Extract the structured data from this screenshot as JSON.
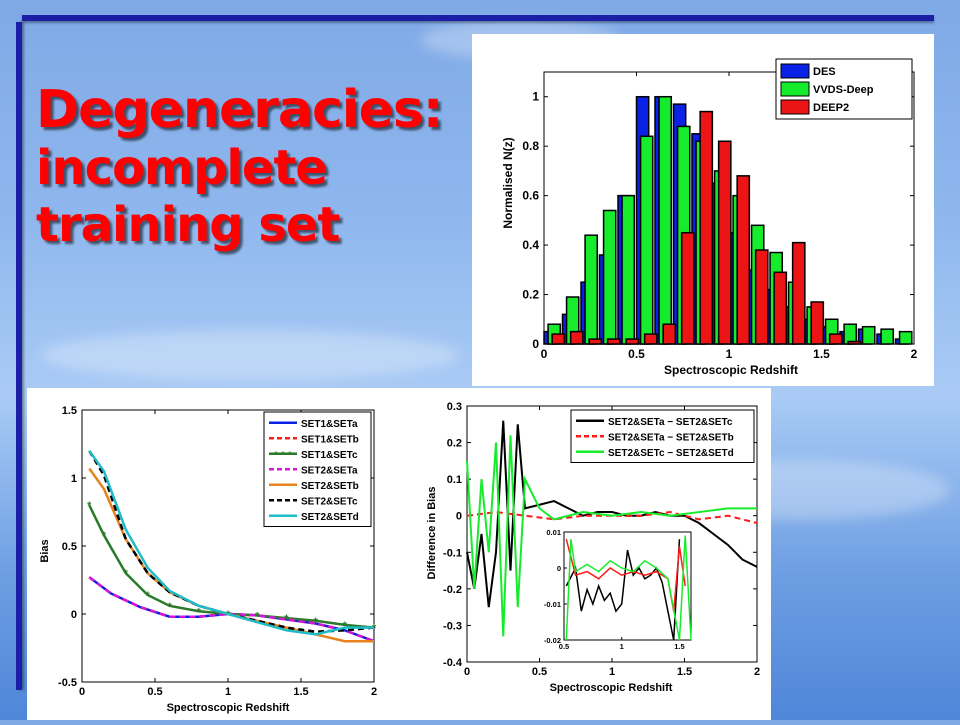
{
  "slide": {
    "title_lines": [
      "Degeneracies:",
      "incomplete",
      "training set"
    ]
  },
  "colors": {
    "title": "#ff0000",
    "rule": "#1b1fa8",
    "des": "#0a22e6",
    "vvds": "#16ec2b",
    "deep2": "#ec1414"
  },
  "chart_data": [
    {
      "type": "bar",
      "xlabel": "Spectroscopic Redshift",
      "ylabel": "Normalised N(z)",
      "xlim": [
        0,
        2
      ],
      "ylim": [
        0,
        1.1
      ],
      "xticks": [
        0,
        0.5,
        1,
        1.5,
        2
      ],
      "xtick_labels": [
        "0",
        "0.5",
        "1",
        "1.5",
        "2"
      ],
      "yticks": [
        0,
        0.2,
        0.4,
        0.6,
        0.8,
        1
      ],
      "ytick_labels": [
        "0",
        "0.2",
        "0.4",
        "0.6",
        "0.8",
        "1"
      ],
      "legend_position": "top-right",
      "bin_width": 0.1,
      "series": [
        {
          "name": "DES",
          "color": "#0a22e6",
          "x": [
            0.05,
            0.15,
            0.25,
            0.35,
            0.45,
            0.55,
            0.65,
            0.75,
            0.85,
            0.95,
            1.05,
            1.15,
            1.25,
            1.35,
            1.45,
            1.55,
            1.65,
            1.75,
            1.85,
            1.95
          ],
          "values": [
            0.05,
            0.12,
            0.25,
            0.36,
            0.6,
            1.0,
            1.0,
            0.97,
            0.85,
            0.65,
            0.45,
            0.3,
            0.22,
            0.15,
            0.1,
            0.07,
            0.05,
            0.06,
            0.04,
            0.02
          ]
        },
        {
          "name": "VVDS-Deep",
          "color": "#16ec2b",
          "x": [
            0.05,
            0.15,
            0.25,
            0.35,
            0.45,
            0.55,
            0.65,
            0.75,
            0.85,
            0.95,
            1.05,
            1.15,
            1.25,
            1.35,
            1.45,
            1.55,
            1.65,
            1.75,
            1.85,
            1.95
          ],
          "values": [
            0.08,
            0.19,
            0.44,
            0.54,
            0.6,
            0.84,
            1.0,
            0.88,
            0.82,
            0.7,
            0.6,
            0.48,
            0.37,
            0.25,
            0.15,
            0.1,
            0.08,
            0.07,
            0.06,
            0.05
          ]
        },
        {
          "name": "DEEP2",
          "color": "#ec1414",
          "x": [
            0.05,
            0.15,
            0.25,
            0.35,
            0.45,
            0.55,
            0.65,
            0.75,
            0.85,
            0.95,
            1.05,
            1.15,
            1.25,
            1.35,
            1.45,
            1.55,
            1.65,
            1.75,
            1.85,
            1.95
          ],
          "values": [
            0.04,
            0.05,
            0.02,
            0.02,
            0.02,
            0.04,
            0.08,
            0.45,
            0.94,
            0.82,
            0.68,
            0.38,
            0.29,
            0.41,
            0.17,
            0.04,
            0.01,
            0.0,
            0.0,
            0.0
          ]
        }
      ]
    },
    {
      "type": "line",
      "xlabel": "Spectroscopic Redshift",
      "ylabel": "Bias",
      "xlim": [
        0,
        2
      ],
      "ylim": [
        -0.5,
        1.5
      ],
      "xticks": [
        0,
        0.5,
        1,
        1.5,
        2
      ],
      "xtick_labels": [
        "0",
        "0.5",
        "1",
        "1.5",
        "2"
      ],
      "yticks": [
        -0.5,
        0,
        0.5,
        1,
        1.5
      ],
      "ytick_labels": [
        "-0.5",
        "0",
        "0.5",
        "1",
        "1.5"
      ],
      "legend_position": "top-right",
      "series": [
        {
          "name": "SET1&SETa",
          "color": "#0a22e6",
          "dash": "solid",
          "x": [
            0.05,
            0.2,
            0.4,
            0.6,
            0.8,
            1.0,
            1.2,
            1.4,
            1.6,
            1.8,
            2.0
          ],
          "values": [
            0.27,
            0.15,
            0.05,
            -0.02,
            -0.02,
            0.0,
            -0.01,
            -0.04,
            -0.07,
            -0.12,
            -0.2
          ]
        },
        {
          "name": "SET1&SETb",
          "color": "#ff1a1a",
          "dash": "dashed",
          "x": [
            0.05,
            0.2,
            0.4,
            0.6,
            0.8,
            1.0,
            1.2,
            1.4,
            1.6,
            1.8,
            2.0
          ],
          "values": [
            0.27,
            0.15,
            0.05,
            -0.02,
            -0.02,
            0.0,
            -0.01,
            -0.04,
            -0.07,
            -0.12,
            -0.2
          ]
        },
        {
          "name": "SET1&SETc",
          "color": "#2a7a2a",
          "dash": "marker",
          "x": [
            0.05,
            0.15,
            0.3,
            0.45,
            0.6,
            0.8,
            1.0,
            1.2,
            1.4,
            1.6,
            1.8,
            2.0
          ],
          "values": [
            0.8,
            0.58,
            0.3,
            0.14,
            0.06,
            0.02,
            0.0,
            -0.01,
            -0.03,
            -0.05,
            -0.08,
            -0.1
          ]
        },
        {
          "name": "SET2&SETa",
          "color": "#d516d5",
          "dash": "dashed",
          "x": [
            0.05,
            0.2,
            0.4,
            0.6,
            0.8,
            1.0,
            1.2,
            1.4,
            1.6,
            1.8,
            2.0
          ],
          "values": [
            0.27,
            0.15,
            0.05,
            -0.02,
            -0.02,
            0.0,
            -0.01,
            -0.04,
            -0.07,
            -0.12,
            -0.2
          ]
        },
        {
          "name": "SET2&SETb",
          "color": "#e8821e",
          "dash": "solid",
          "x": [
            0.05,
            0.15,
            0.3,
            0.45,
            0.6,
            0.8,
            1.0,
            1.2,
            1.4,
            1.6,
            1.8,
            2.0
          ],
          "values": [
            1.07,
            0.92,
            0.55,
            0.3,
            0.16,
            0.06,
            0.0,
            -0.05,
            -0.1,
            -0.15,
            -0.2,
            -0.2
          ]
        },
        {
          "name": "SET2&SETc",
          "color": "#000000",
          "dash": "dashed",
          "x": [
            0.05,
            0.15,
            0.3,
            0.45,
            0.6,
            0.8,
            1.0,
            1.2,
            1.4,
            1.6,
            1.8,
            2.0
          ],
          "values": [
            1.2,
            1.02,
            0.55,
            0.3,
            0.16,
            0.06,
            0.0,
            -0.05,
            -0.1,
            -0.13,
            -0.12,
            -0.1
          ]
        },
        {
          "name": "SET2&SETd",
          "color": "#1fbcc9",
          "dash": "solid",
          "x": [
            0.05,
            0.15,
            0.3,
            0.45,
            0.6,
            0.8,
            1.0,
            1.2,
            1.4,
            1.6,
            1.8,
            2.0
          ],
          "values": [
            1.2,
            1.05,
            0.62,
            0.34,
            0.17,
            0.06,
            0.0,
            -0.06,
            -0.12,
            -0.15,
            -0.1,
            -0.1
          ]
        }
      ]
    },
    {
      "type": "line",
      "xlabel": "Spectroscopic Redshift",
      "ylabel": "Difference in Bias",
      "xlim": [
        0,
        2
      ],
      "ylim": [
        -0.4,
        0.3
      ],
      "xticks": [
        0,
        0.5,
        1,
        1.5,
        2
      ],
      "xtick_labels": [
        "0",
        "0.5",
        "1",
        "1.5",
        "2"
      ],
      "yticks": [
        -0.4,
        -0.3,
        -0.2,
        -0.1,
        0,
        0.1,
        0.2,
        0.3
      ],
      "ytick_labels": [
        "-0.4",
        "-0.3",
        "-0.2",
        "-0.1",
        "0",
        "0.1",
        "0.2",
        "0.3"
      ],
      "legend_position": "top-right",
      "series": [
        {
          "name": "SET2&SETa − SET2&SETc",
          "color": "#000000",
          "dash": "solid",
          "x": [
            0.0,
            0.05,
            0.1,
            0.15,
            0.2,
            0.25,
            0.3,
            0.35,
            0.4,
            0.5,
            0.6,
            0.7,
            0.8,
            0.9,
            1.0,
            1.1,
            1.2,
            1.3,
            1.4,
            1.5,
            1.6,
            1.7,
            1.8,
            1.9,
            2.0
          ],
          "values": [
            -0.1,
            -0.2,
            -0.05,
            -0.25,
            -0.1,
            0.26,
            -0.15,
            0.25,
            0.02,
            0.03,
            0.04,
            0.02,
            0.0,
            0.01,
            0.01,
            0.0,
            0.0,
            0.01,
            0.0,
            0.0,
            -0.02,
            -0.05,
            -0.08,
            -0.12,
            -0.14
          ]
        },
        {
          "name": "SET2&SETa − SET2&SETb",
          "color": "#ff1a1a",
          "dash": "dashed",
          "x": [
            0.0,
            0.2,
            0.4,
            0.6,
            0.8,
            1.0,
            1.2,
            1.4,
            1.6,
            1.8,
            2.0
          ],
          "values": [
            0.0,
            0.01,
            0.0,
            -0.01,
            0.0,
            0.0,
            0.0,
            0.01,
            -0.01,
            0.0,
            -0.02
          ]
        },
        {
          "name": "SET2&SETc − SET2&SETd",
          "color": "#16ec2b",
          "dash": "solid",
          "x": [
            0.0,
            0.05,
            0.1,
            0.15,
            0.2,
            0.25,
            0.3,
            0.35,
            0.4,
            0.5,
            0.6,
            0.8,
            1.0,
            1.2,
            1.4,
            1.6,
            1.8,
            2.0
          ],
          "values": [
            0.15,
            -0.2,
            0.1,
            -0.1,
            0.2,
            -0.33,
            0.22,
            -0.25,
            0.1,
            0.02,
            -0.01,
            0.01,
            0.0,
            0.01,
            0.0,
            0.01,
            0.02,
            0.02
          ]
        }
      ],
      "inset": {
        "xlim": [
          0.5,
          1.6
        ],
        "ylim": [
          -0.02,
          0.01
        ],
        "xticks": [
          0.5,
          1,
          1.5
        ],
        "xtick_labels": [
          "0.5",
          "1",
          "1.5"
        ],
        "yticks": [
          -0.02,
          -0.01,
          0,
          0.01
        ],
        "ytick_labels": [
          "-0.02",
          "-0.01",
          "0",
          "0.01"
        ],
        "series": [
          {
            "color": "#000000",
            "x": [
              0.52,
              0.6,
              0.65,
              0.7,
              0.75,
              0.8,
              0.85,
              0.9,
              0.95,
              1.0,
              1.05,
              1.1,
              1.15,
              1.2,
              1.25,
              1.3,
              1.35,
              1.4,
              1.45,
              1.5
            ],
            "values": [
              -0.005,
              0.0,
              -0.012,
              -0.006,
              -0.01,
              -0.005,
              -0.009,
              -0.007,
              -0.012,
              -0.01,
              0.005,
              -0.002,
              0.0,
              -0.003,
              -0.002,
              0.0,
              -0.004,
              -0.012,
              -0.02,
              0.008
            ]
          },
          {
            "color": "#ff1a1a",
            "x": [
              0.52,
              0.6,
              0.7,
              0.8,
              0.9,
              1.0,
              1.1,
              1.2,
              1.3,
              1.4,
              1.45,
              1.5,
              1.55
            ],
            "values": [
              0.008,
              -0.002,
              -0.001,
              -0.003,
              0.0,
              -0.002,
              -0.001,
              -0.002,
              -0.001,
              -0.003,
              -0.012,
              0.006,
              -0.005
            ]
          },
          {
            "color": "#16ec2b",
            "x": [
              0.52,
              0.56,
              0.6,
              0.7,
              0.8,
              0.9,
              1.0,
              1.1,
              1.2,
              1.3,
              1.4,
              1.5,
              1.55,
              1.6
            ],
            "values": [
              -0.02,
              0.008,
              -0.001,
              0.001,
              -0.001,
              0.002,
              0.0,
              -0.001,
              0.002,
              0.0,
              -0.003,
              -0.02,
              0.009,
              -0.02
            ]
          }
        ]
      }
    }
  ]
}
